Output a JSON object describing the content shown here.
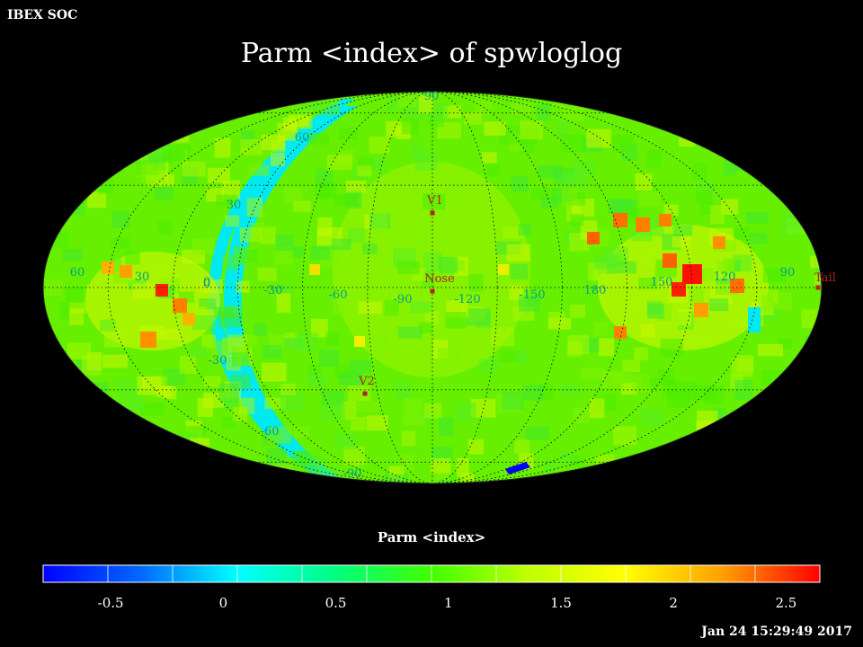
{
  "header": {
    "org": "IBEX SOC",
    "title": "Parm  <index> of spwloglog"
  },
  "map": {
    "projection": "Mollweide (ecliptic, all-sky)",
    "colors": {
      "background": "#000000",
      "map_base": "#66f000",
      "blue_band": "#00e8f0",
      "grid": "#000000",
      "grid_label": "#00a08c",
      "marker": "#b42020"
    },
    "latitude_labels": [
      "90",
      "60",
      "30",
      "0",
      "-30",
      "-60",
      "-90"
    ],
    "longitude_labels": [
      "60",
      "30",
      "0",
      "-30",
      "-60",
      "-90",
      "-120",
      "-150",
      "180",
      "150",
      "120",
      "90"
    ],
    "markers": [
      {
        "id": "v1",
        "label": "V1"
      },
      {
        "id": "nose",
        "label": "Nose"
      },
      {
        "id": "v2",
        "label": "V2"
      },
      {
        "id": "tail",
        "label": "Tail"
      }
    ]
  },
  "colorbar": {
    "title": "Parm  <index>",
    "range": [
      -0.8,
      2.65
    ],
    "tick_labels": [
      "-0.5",
      "0",
      "0.5",
      "1",
      "1.5",
      "2",
      "2.5"
    ],
    "colormap": [
      "#0000ff",
      "#0068ff",
      "#00ffff",
      "#00ff80",
      "#40ff00",
      "#c0ff00",
      "#ffff00",
      "#ffa000",
      "#ff0000"
    ]
  },
  "footer": {
    "timestamp": "Jan 24 15:29:49 2017"
  }
}
